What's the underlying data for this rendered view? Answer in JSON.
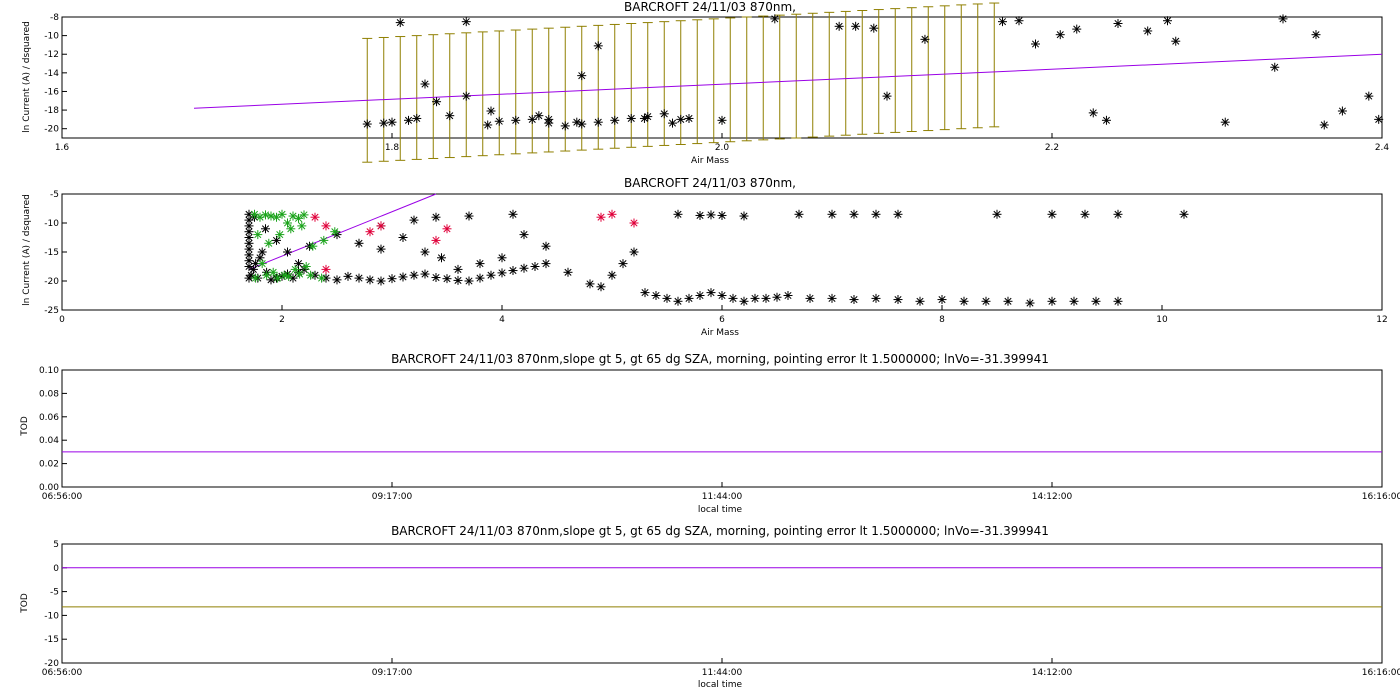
{
  "colors": {
    "black": "#000000",
    "purple": "#9a00e6",
    "olive": "#8f7f00",
    "red": "#e0003a",
    "green": "#1aa31a"
  },
  "chart_data": [
    {
      "type": "scatter",
      "title": "BARCROFT 24/11/03 870nm,",
      "xlabel": "Air Mass",
      "ylabel": "ln Current (A) / dsquared",
      "xlim": [
        1.6,
        2.4
      ],
      "ylim": [
        -21,
        -8
      ],
      "xticks": [
        "1.6",
        "1.8",
        "2.0",
        "2.2",
        "2.4"
      ],
      "yticks": [
        "-20",
        "-18",
        "-16",
        "-14",
        "-12",
        "-10",
        "-8"
      ],
      "fit_line": {
        "x": [
          1.68,
          2.4
        ],
        "y": [
          -17.8,
          -12.0
        ]
      },
      "points": {
        "x": [
          1.785,
          1.795,
          1.8,
          1.81,
          1.815,
          1.82,
          1.827,
          1.835,
          1.845,
          1.858,
          1.865,
          1.875,
          1.885,
          1.895,
          1.905,
          1.915,
          1.925,
          1.935,
          1.945,
          1.955,
          1.965,
          1.975,
          1.915,
          1.925,
          1.845,
          1.805,
          1.86,
          1.889,
          1.895,
          1.912,
          1.953,
          1.97,
          1.98,
          2.032,
          2.071,
          2.081,
          2.092,
          2.123,
          2.17,
          2.18,
          2.19,
          2.205,
          2.215,
          2.225,
          2.233,
          2.24,
          2.258,
          2.27,
          2.275,
          2.305,
          2.335,
          2.365,
          2.376,
          2.392,
          2.34,
          2.36,
          2.398,
          2.1,
          2.0
        ],
        "y": [
          -19.5,
          -19.4,
          -19.3,
          -19.1,
          -18.9,
          -15.2,
          -17.1,
          -18.6,
          -16.5,
          -19.6,
          -19.2,
          -19.1,
          -19.0,
          -19.4,
          -19.7,
          -19.5,
          -19.3,
          -19.1,
          -18.9,
          -18.7,
          -18.4,
          -19.0,
          -14.3,
          -11.1,
          -8.5,
          -8.6,
          -18.1,
          -18.6,
          -19.0,
          -19.3,
          -18.9,
          -19.4,
          -18.9,
          -8.2,
          -9.0,
          -9.0,
          -9.2,
          -10.4,
          -8.5,
          -8.4,
          -10.9,
          -9.9,
          -9.3,
          -18.3,
          -19.1,
          -8.7,
          -9.5,
          -8.4,
          -10.6,
          -19.3,
          -13.4,
          -19.6,
          -18.1,
          -16.5,
          -8.2,
          -9.9,
          -19.0,
          -16.5,
          -19.1
        ]
      },
      "error_bars": {
        "x": [
          1.785,
          1.795,
          1.805,
          1.815,
          1.825,
          1.835,
          1.845,
          1.855,
          1.865,
          1.875,
          1.885,
          1.895,
          1.905,
          1.915,
          1.925,
          1.935,
          1.945,
          1.955,
          1.965,
          1.975,
          1.985,
          1.995,
          2.005,
          2.015,
          2.025,
          2.035,
          2.045,
          2.055,
          2.065,
          2.075,
          2.085,
          2.095,
          2.105,
          2.115,
          2.125,
          2.135,
          2.145,
          2.155,
          2.165
        ],
        "low": [
          -23.6,
          -23.5,
          -23.4,
          -23.3,
          -23.2,
          -23.1,
          -23.0,
          -22.9,
          -22.8,
          -22.7,
          -22.6,
          -22.5,
          -22.4,
          -22.3,
          -22.2,
          -22.1,
          -22.0,
          -21.9,
          -21.8,
          -21.7,
          -21.6,
          -21.5,
          -21.4,
          -21.3,
          -21.2,
          -21.1,
          -21.0,
          -20.9,
          -20.8,
          -20.7,
          -20.6,
          -20.5,
          -20.4,
          -20.3,
          -20.2,
          -20.1,
          -20.0,
          -19.9,
          -19.8
        ],
        "high": [
          -10.3,
          -10.2,
          -10.1,
          -10.0,
          -9.9,
          -9.8,
          -9.7,
          -9.6,
          -9.5,
          -9.4,
          -9.3,
          -9.2,
          -9.1,
          -9.0,
          -8.9,
          -8.8,
          -8.7,
          -8.6,
          -8.5,
          -8.4,
          -8.3,
          -8.2,
          -8.1,
          -8.0,
          -7.9,
          -7.8,
          -7.7,
          -7.6,
          -7.5,
          -7.4,
          -7.3,
          -7.2,
          -7.1,
          -7.0,
          -6.9,
          -6.8,
          -6.7,
          -6.6,
          -6.5
        ]
      }
    },
    {
      "type": "scatter",
      "title": "BARCROFT 24/11/03 870nm,",
      "xlabel": "Air Mass",
      "ylabel": "ln Current (A) / dsquared",
      "xlim": [
        0,
        12
      ],
      "ylim": [
        -25,
        -5
      ],
      "xticks": [
        "0",
        "2",
        "4",
        "6",
        "8",
        "10",
        "12"
      ],
      "yticks": [
        "-25",
        "-20",
        "-15",
        "-10",
        "-5"
      ],
      "fit_line": {
        "x": [
          1.7,
          3.4
        ],
        "y": [
          -18.0,
          -5.0
        ]
      },
      "series": [
        {
          "color": "black",
          "x": [
            1.7,
            1.7,
            1.7,
            1.7,
            1.7,
            1.7,
            1.7,
            1.7,
            1.7,
            1.7,
            1.7,
            1.72,
            1.74,
            1.76,
            1.78,
            1.8,
            1.82,
            1.86,
            1.9,
            1.95,
            2.0,
            2.05,
            2.1,
            2.15,
            2.2,
            2.3,
            2.4,
            2.5,
            2.6,
            2.7,
            2.8,
            2.9,
            3.0,
            3.1,
            3.2,
            3.3,
            3.4,
            3.5,
            3.6,
            3.7,
            3.8,
            3.9,
            4.0,
            4.1,
            4.2,
            4.3,
            4.4,
            2.7,
            2.9,
            3.1,
            3.3,
            3.45,
            3.6,
            3.8,
            4.0,
            4.2,
            4.4,
            4.6,
            4.8,
            4.9,
            5.0,
            5.1,
            5.2,
            5.3,
            5.4,
            5.5,
            5.6,
            5.7,
            5.8,
            5.9,
            6.0,
            6.1,
            6.2,
            6.3,
            6.4,
            6.5,
            6.6,
            6.8,
            7.0,
            7.2,
            7.4,
            7.6,
            7.8,
            8.0,
            8.2,
            8.4,
            8.6,
            8.8,
            9.0,
            9.2,
            9.4,
            9.6,
            2.5,
            2.9,
            3.2,
            3.4,
            3.7,
            4.1,
            5.6,
            5.8,
            5.9,
            6.0,
            6.2,
            6.7,
            7.0,
            7.2,
            7.4,
            7.6,
            8.5,
            9.0,
            9.3,
            9.6,
            10.2,
            1.75,
            1.85,
            1.95,
            2.05,
            2.15,
            2.25
          ],
          "y": [
            -8.5,
            -9.5,
            -10.5,
            -11.5,
            -12.5,
            -13.5,
            -14.5,
            -15.5,
            -16.5,
            -17.5,
            -19.5,
            -19.0,
            -18.0,
            -17.0,
            -19.5,
            -16.0,
            -15.0,
            -18.5,
            -19.8,
            -19.5,
            -19.2,
            -18.8,
            -19.5,
            -18.5,
            -18.0,
            -19.0,
            -19.5,
            -19.8,
            -19.2,
            -19.5,
            -19.8,
            -20.0,
            -19.6,
            -19.3,
            -19.0,
            -18.8,
            -19.4,
            -19.6,
            -19.9,
            -20.0,
            -19.5,
            -19.0,
            -18.6,
            -18.2,
            -17.8,
            -17.5,
            -17.0,
            -13.5,
            -14.5,
            -12.5,
            -15.0,
            -16.0,
            -18.0,
            -17.0,
            -16.0,
            -12.0,
            -14.0,
            -18.5,
            -20.5,
            -21.0,
            -19.0,
            -17.0,
            -15.0,
            -22.0,
            -22.5,
            -23.0,
            -23.5,
            -23.0,
            -22.5,
            -22.0,
            -22.5,
            -23.0,
            -23.5,
            -23.0,
            -23.0,
            -22.8,
            -22.5,
            -23.0,
            -23.0,
            -23.2,
            -23.0,
            -23.2,
            -23.5,
            -23.2,
            -23.5,
            -23.5,
            -23.5,
            -23.8,
            -23.5,
            -23.5,
            -23.5,
            -23.5,
            -12.0,
            -10.5,
            -9.5,
            -9.0,
            -8.8,
            -8.5,
            -8.5,
            -8.7,
            -8.6,
            -8.7,
            -8.8,
            -8.5,
            -8.5,
            -8.5,
            -8.5,
            -8.5,
            -8.5,
            -8.5,
            -8.5,
            -8.5,
            -8.5,
            -9.0,
            -11.0,
            -13.0,
            -15.0,
            -17.0,
            -14.0
          ]
        },
        {
          "color": "green",
          "x": [
            1.75,
            1.8,
            1.85,
            1.9,
            1.95,
            2.0,
            2.05,
            2.1,
            2.15,
            2.2,
            1.78,
            1.88,
            1.98,
            2.08,
            2.18,
            2.28,
            2.38,
            2.48,
            1.82,
            1.92,
            2.02,
            2.12,
            2.22,
            1.76,
            1.86,
            1.96,
            2.06,
            2.16,
            2.26,
            2.36
          ],
          "y": [
            -8.5,
            -9.0,
            -8.6,
            -8.8,
            -9.0,
            -8.5,
            -10.0,
            -8.8,
            -9.2,
            -8.6,
            -12.0,
            -13.5,
            -12.0,
            -11.0,
            -10.5,
            -14.0,
            -13.0,
            -11.5,
            -17.0,
            -18.5,
            -19.0,
            -18.0,
            -17.5,
            -19.5,
            -19.0,
            -19.5,
            -19.2,
            -18.8,
            -19.0,
            -19.5
          ]
        },
        {
          "color": "red",
          "x": [
            2.3,
            2.4,
            2.9,
            2.8,
            3.5,
            3.4,
            4.9,
            5.0,
            5.2,
            2.4
          ],
          "y": [
            -9.0,
            -10.5,
            -10.5,
            -11.5,
            -11.0,
            -13.0,
            -9.0,
            -8.5,
            -10.0,
            -18.0
          ]
        }
      ]
    },
    {
      "type": "line",
      "title": "BARCROFT 24/11/03 870nm,slope gt 5, gt 65 dg SZA, morning, pointing error lt 1.5000000; lnVo=-31.399941",
      "xlabel": "local time",
      "ylabel": "TOD",
      "ylim": [
        0.0,
        0.1
      ],
      "yticks": [
        "0.00",
        "0.02",
        "0.04",
        "0.06",
        "0.08",
        "0.10"
      ],
      "xticks": [
        "06:56:00",
        "09:17:00",
        "11:44:00",
        "14:12:00",
        "16:16:00"
      ],
      "line": {
        "y": 0.03,
        "color": "purple"
      }
    },
    {
      "type": "scatter",
      "title": "BARCROFT 24/11/03 870nm,slope gt 5, gt 65 dg SZA, morning, pointing error lt 1.5000000; lnVo=-31.399941",
      "xlabel": "local time",
      "ylabel": "TOD",
      "ylim": [
        -20,
        5
      ],
      "yticks": [
        "-20",
        "-15",
        "-10",
        "-5",
        "0",
        "5"
      ],
      "xticks": [
        "06:56:00",
        "09:17:00",
        "11:44:00",
        "14:12:00",
        "16:16:00"
      ],
      "hlines": [
        {
          "y": 0,
          "color": "purple"
        },
        {
          "y": -8.2,
          "color": "olive"
        }
      ]
    }
  ]
}
